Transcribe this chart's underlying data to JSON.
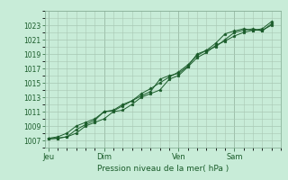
{
  "title": "",
  "xlabel": "Pression niveau de la mer( hPa )",
  "ylabel": "",
  "background_color": "#c8ecd8",
  "grid_color": "#a8c8b4",
  "line_color": "#1a5c2a",
  "ylim": [
    1006,
    1025
  ],
  "yticks": [
    1007,
    1009,
    1011,
    1013,
    1015,
    1017,
    1019,
    1021,
    1023
  ],
  "day_labels": [
    "Jeu",
    "Dim",
    "Ven",
    "Sam"
  ],
  "day_positions": [
    0,
    3,
    7,
    10
  ],
  "xlim": [
    -0.2,
    12.5
  ],
  "series1_x": [
    0,
    0.5,
    1,
    1.5,
    2,
    2.5,
    3,
    3.5,
    4,
    4.5,
    5,
    5.5,
    6,
    6.5,
    7,
    7.5,
    8,
    8.5,
    9,
    9.5,
    10,
    10.5,
    11,
    11.5,
    12
  ],
  "series1_y": [
    1007.2,
    1007.3,
    1007.5,
    1008.0,
    1009.0,
    1009.5,
    1010.0,
    1011.0,
    1011.2,
    1012.0,
    1013.0,
    1013.5,
    1014.0,
    1015.5,
    1016.0,
    1017.2,
    1018.5,
    1019.2,
    1020.2,
    1020.8,
    1021.5,
    1022.0,
    1022.3,
    1022.5,
    1023.5
  ],
  "series2_x": [
    0,
    0.5,
    1,
    1.5,
    2,
    2.5,
    3,
    3.5,
    4,
    4.5,
    5,
    5.5,
    6,
    6.5,
    7,
    7.5,
    8,
    8.5,
    9,
    9.5,
    10,
    10.5,
    11,
    11.5,
    12
  ],
  "series2_y": [
    1007.2,
    1007.3,
    1007.5,
    1008.5,
    1009.2,
    1009.8,
    1011.0,
    1011.1,
    1011.8,
    1012.5,
    1013.2,
    1013.8,
    1015.5,
    1016.0,
    1016.3,
    1017.3,
    1019.0,
    1019.5,
    1020.0,
    1021.0,
    1022.0,
    1022.3,
    1022.5,
    1022.2,
    1023.2
  ],
  "series3_x": [
    0,
    0.5,
    1,
    1.5,
    2,
    2.5,
    3,
    3.5,
    4,
    4.5,
    5,
    5.5,
    6,
    6.5,
    7,
    7.5,
    8,
    8.5,
    9,
    9.5,
    10,
    10.5,
    11,
    11.5,
    12
  ],
  "series3_y": [
    1007.3,
    1007.5,
    1008.0,
    1009.0,
    1009.5,
    1010.0,
    1011.0,
    1011.2,
    1012.0,
    1012.5,
    1013.5,
    1014.2,
    1015.0,
    1015.8,
    1016.5,
    1017.5,
    1018.8,
    1019.5,
    1020.5,
    1021.8,
    1022.2,
    1022.5,
    1022.3,
    1022.3,
    1023.0
  ]
}
